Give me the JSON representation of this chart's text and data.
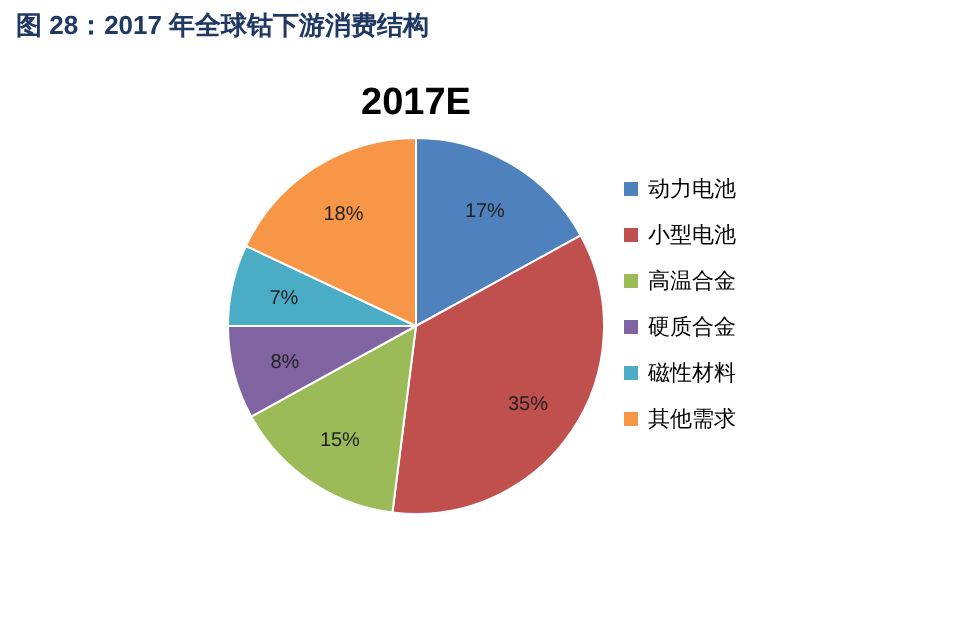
{
  "chart_data": {
    "type": "pie",
    "title": "图 28：2017 年全球钴下游消费结构",
    "subtitle": "2017E",
    "categories": [
      "动力电池",
      "小型电池",
      "高温合金",
      "硬质合金",
      "磁性材料",
      "其他需求"
    ],
    "values": [
      17,
      35,
      15,
      8,
      7,
      18
    ],
    "colors": [
      "#4f81bd",
      "#c0504d",
      "#9bbb59",
      "#8064a2",
      "#4bacc6",
      "#f79646"
    ],
    "value_labels": [
      "17%",
      "35%",
      "15%",
      "8%",
      "7%",
      "18%"
    ],
    "legend": "right"
  }
}
